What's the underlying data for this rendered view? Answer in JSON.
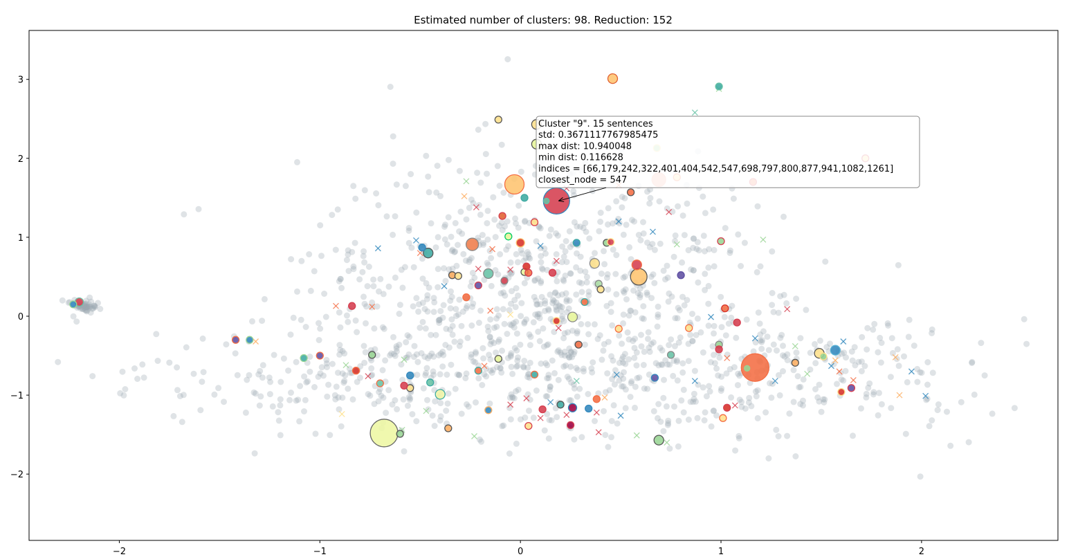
{
  "chart_data": {
    "type": "scatter",
    "title": "Estimated number of clusters: 98. Reduction: 152",
    "xlabel": "",
    "ylabel": "",
    "xlim": [
      -2.45,
      2.68
    ],
    "ylim": [
      -2.84,
      3.62
    ],
    "x_ticks": [
      -2,
      -1,
      0,
      1,
      2
    ],
    "y_ticks": [
      -2,
      -1,
      0,
      1,
      2,
      3
    ],
    "x_tick_labels": [
      "−2",
      "−1",
      "0",
      "1",
      "2"
    ],
    "y_tick_labels": [
      "−2",
      "−1",
      "0",
      "1",
      "2",
      "3"
    ],
    "grid": false,
    "legend": "none",
    "background_points": {
      "color": "#9aa7b0",
      "count": 1400,
      "description_free": true
    },
    "cluster_markers": [
      {
        "x": -0.68,
        "y": -1.48,
        "size": 20,
        "color": "#eef7a3",
        "edge": "#666666"
      },
      {
        "x": 1.17,
        "y": -0.65,
        "size": 20,
        "color": "#f46d43",
        "edge": "#f46d43"
      },
      {
        "x": 0.18,
        "y": 1.46,
        "size": 19,
        "color": "#d53e4f",
        "edge": "#3288bd"
      },
      {
        "x": -0.03,
        "y": 1.67,
        "size": 14,
        "color": "#fec470",
        "edge": "#f46d43"
      },
      {
        "x": 0.59,
        "y": 0.5,
        "size": 12,
        "color": "#fec470",
        "edge": "#555555"
      },
      {
        "x": 0.69,
        "y": 1.73,
        "size": 10,
        "color": "#f7a08d",
        "edge": "#f7a08d"
      },
      {
        "x": -0.24,
        "y": 0.91,
        "size": 9,
        "color": "#ef7c4a",
        "edge": "#888888"
      },
      {
        "x": 0.46,
        "y": 3.01,
        "size": 7,
        "color": "#fec470",
        "edge": "#e06030"
      },
      {
        "x": -0.46,
        "y": 0.8,
        "size": 7,
        "color": "#3eaaa2",
        "edge": "#555555"
      },
      {
        "x": 0.69,
        "y": -1.57,
        "size": 7,
        "color": "#99d594",
        "edge": "#555555"
      },
      {
        "x": 1.49,
        "y": -0.47,
        "size": 7,
        "color": "#fee08b",
        "edge": "#555555"
      },
      {
        "x": -0.16,
        "y": 0.54,
        "size": 7,
        "color": "#66c2a5",
        "edge": "#888888"
      },
      {
        "x": 1.57,
        "y": -0.43,
        "size": 7,
        "color": "#3288bd",
        "edge": "#5ab4d6"
      },
      {
        "x": 0.37,
        "y": 0.67,
        "size": 7,
        "color": "#fee08b",
        "edge": "#888888"
      },
      {
        "x": -0.4,
        "y": -0.99,
        "size": 7,
        "color": "#f4f7a8",
        "edge": "#3eaaa2"
      },
      {
        "x": 0.26,
        "y": -0.01,
        "size": 7,
        "color": "#e6f598",
        "edge": "#888888"
      },
      {
        "x": 0.08,
        "y": 2.43,
        "size": 7,
        "color": "#fee08b",
        "edge": "#555555"
      },
      {
        "x": 0.08,
        "y": 2.18,
        "size": 7,
        "color": "#e6f598",
        "edge": "#555555"
      },
      {
        "x": 0.58,
        "y": 0.65,
        "size": 7,
        "color": "#d53e4f",
        "edge": "#f46d43"
      },
      {
        "x": 0.26,
        "y": -1.16,
        "size": 6,
        "color": "#9e0142",
        "edge": "#3288bd"
      },
      {
        "x": 0.0,
        "y": 0.93,
        "size": 6,
        "color": "#d73027",
        "edge": "#fec470"
      },
      {
        "x": 0.99,
        "y": 2.91,
        "size": 5,
        "color": "#3eaaa2",
        "edge": "#66c2a5"
      },
      {
        "x": -2.2,
        "y": 0.18,
        "size": 6,
        "color": "#d53e4f",
        "edge": "#66c2a5"
      },
      {
        "x": -2.23,
        "y": 0.15,
        "size": 5,
        "color": "#3288bd",
        "edge": "#99d594"
      },
      {
        "x": -1.42,
        "y": -0.3,
        "size": 5,
        "color": "#5e4fa2",
        "edge": "#f46d43"
      },
      {
        "x": -1.35,
        "y": -0.3,
        "size": 5,
        "color": "#3288bd",
        "edge": "#99d594"
      },
      {
        "x": -1.08,
        "y": -0.53,
        "size": 5,
        "color": "#3eaaa2",
        "edge": "#99d594"
      },
      {
        "x": -1.0,
        "y": -0.5,
        "size": 5,
        "color": "#5e4fa2",
        "edge": "#f46d43"
      },
      {
        "x": -0.84,
        "y": 0.13,
        "size": 5,
        "color": "#d53e4f",
        "edge": "#d53e4f"
      },
      {
        "x": -0.74,
        "y": -0.49,
        "size": 5,
        "color": "#99d594",
        "edge": "#555555"
      },
      {
        "x": -0.82,
        "y": -0.69,
        "size": 5,
        "color": "#d73027",
        "edge": "#f46d43"
      },
      {
        "x": -0.7,
        "y": -0.85,
        "size": 5,
        "color": "#66c2a5",
        "edge": "#f46d43"
      },
      {
        "x": -0.55,
        "y": -0.91,
        "size": 5,
        "color": "#fee08b",
        "edge": "#555555"
      },
      {
        "x": -0.58,
        "y": -0.88,
        "size": 5,
        "color": "#d53e4f",
        "edge": "#d53e4f"
      },
      {
        "x": -0.45,
        "y": -0.84,
        "size": 5,
        "color": "#66c2a5",
        "edge": "#3eaaa2"
      },
      {
        "x": -0.36,
        "y": -1.42,
        "size": 5,
        "color": "#fdae61",
        "edge": "#555555"
      },
      {
        "x": -0.55,
        "y": -0.75,
        "size": 5,
        "color": "#3288bd",
        "edge": "#3288bd"
      },
      {
        "x": -0.49,
        "y": 0.87,
        "size": 5,
        "color": "#3288bd",
        "edge": "#3288bd"
      },
      {
        "x": -0.34,
        "y": 0.52,
        "size": 5,
        "color": "#fdae61",
        "edge": "#555555"
      },
      {
        "x": -0.31,
        "y": 0.51,
        "size": 5,
        "color": "#fee08b",
        "edge": "#555555"
      },
      {
        "x": -0.21,
        "y": 0.39,
        "size": 5,
        "color": "#5e4fa2",
        "edge": "#d53e4f"
      },
      {
        "x": -0.27,
        "y": 0.24,
        "size": 5,
        "color": "#f46d43",
        "edge": "#f46d43"
      },
      {
        "x": -0.09,
        "y": 1.27,
        "size": 5,
        "color": "#e06030",
        "edge": "#d53e4f"
      },
      {
        "x": -0.08,
        "y": 0.45,
        "size": 5,
        "color": "#d53e4f",
        "edge": "#888888"
      },
      {
        "x": -0.06,
        "y": 1.01,
        "size": 5,
        "color": "#e6f598",
        "edge": "#00cc66"
      },
      {
        "x": -0.11,
        "y": 2.49,
        "size": 5,
        "color": "#fee08b",
        "edge": "#555555"
      },
      {
        "x": 0.02,
        "y": 0.56,
        "size": 5,
        "color": "#e6f598",
        "edge": "#555555"
      },
      {
        "x": 0.04,
        "y": 0.55,
        "size": 5,
        "color": "#f46d43",
        "edge": "#d53e4f"
      },
      {
        "x": 0.03,
        "y": 0.63,
        "size": 5,
        "color": "#d73027",
        "edge": "#d53e4f"
      },
      {
        "x": 0.02,
        "y": 1.5,
        "size": 5,
        "color": "#3eaaa2",
        "edge": "#3eaaa2"
      },
      {
        "x": 0.07,
        "y": 1.19,
        "size": 5,
        "color": "#fee08b",
        "edge": "#d53e4f"
      },
      {
        "x": 0.16,
        "y": 0.55,
        "size": 5,
        "color": "#d53e4f",
        "edge": "#d53e4f"
      },
      {
        "x": 0.18,
        "y": -0.06,
        "size": 5,
        "color": "#d73027",
        "edge": "#fee08b"
      },
      {
        "x": 0.28,
        "y": 0.93,
        "size": 5,
        "color": "#3288bd",
        "edge": "#3eaaa2"
      },
      {
        "x": 0.32,
        "y": 0.18,
        "size": 5,
        "color": "#f46d43",
        "edge": "#3eaaa2"
      },
      {
        "x": 0.39,
        "y": 0.41,
        "size": 5,
        "color": "#abdda4",
        "edge": "#888888"
      },
      {
        "x": 0.4,
        "y": 0.34,
        "size": 5,
        "color": "#fee08b",
        "edge": "#555555"
      },
      {
        "x": 0.43,
        "y": 0.93,
        "size": 5,
        "color": "#99d594",
        "edge": "#555555"
      },
      {
        "x": 0.45,
        "y": 0.94,
        "size": 5,
        "color": "#d53e4f",
        "edge": "#fee08b"
      },
      {
        "x": 0.55,
        "y": 1.57,
        "size": 5,
        "color": "#f46d43",
        "edge": "#555555"
      },
      {
        "x": 0.29,
        "y": -0.36,
        "size": 5,
        "color": "#f46d43",
        "edge": "#555555"
      },
      {
        "x": 0.49,
        "y": -0.16,
        "size": 5,
        "color": "#fee08b",
        "edge": "#f46d43"
      },
      {
        "x": 0.07,
        "y": -0.74,
        "size": 5,
        "color": "#3eaaa2",
        "edge": "#f46d43"
      },
      {
        "x": -0.11,
        "y": -0.54,
        "size": 5,
        "color": "#e6f598",
        "edge": "#555555"
      },
      {
        "x": -0.16,
        "y": -1.19,
        "size": 5,
        "color": "#3288bd",
        "edge": "#fdae61"
      },
      {
        "x": -0.21,
        "y": -0.69,
        "size": 5,
        "color": "#f46d43",
        "edge": "#3eaaa2"
      },
      {
        "x": 0.04,
        "y": -1.39,
        "size": 5,
        "color": "#fee08b",
        "edge": "#d53e4f"
      },
      {
        "x": 0.11,
        "y": -1.18,
        "size": 5,
        "color": "#d53e4f",
        "edge": "#d53e4f"
      },
      {
        "x": 0.2,
        "y": -1.12,
        "size": 5,
        "color": "#3eaaa2",
        "edge": "#555555"
      },
      {
        "x": 0.34,
        "y": -1.17,
        "size": 5,
        "color": "#3288bd",
        "edge": "#3288bd"
      },
      {
        "x": 0.25,
        "y": -1.38,
        "size": 5,
        "color": "#9e0142",
        "edge": "#d53e4f"
      },
      {
        "x": 0.38,
        "y": -1.05,
        "size": 5,
        "color": "#f46d43",
        "edge": "#f46d43"
      },
      {
        "x": 0.67,
        "y": -0.78,
        "size": 5,
        "color": "#5e4fa2",
        "edge": "#3288bd"
      },
      {
        "x": 0.75,
        "y": -0.49,
        "size": 5,
        "color": "#66c2a5",
        "edge": "#888888"
      },
      {
        "x": 0.84,
        "y": -0.15,
        "size": 5,
        "color": "#fee08b",
        "edge": "#f46d43"
      },
      {
        "x": 0.8,
        "y": 0.52,
        "size": 5,
        "color": "#5e4fa2",
        "edge": "#5e4fa2"
      },
      {
        "x": 0.68,
        "y": 2.13,
        "size": 5,
        "color": "#99d594",
        "edge": "#fee08b"
      },
      {
        "x": 0.78,
        "y": 1.76,
        "size": 5,
        "color": "#fee08b",
        "edge": "#f46d43"
      },
      {
        "x": 1.0,
        "y": 0.95,
        "size": 5,
        "color": "#99d594",
        "edge": "#d53e4f"
      },
      {
        "x": 1.02,
        "y": 0.1,
        "size": 5,
        "color": "#f46d43",
        "edge": "#d73027"
      },
      {
        "x": 1.08,
        "y": -0.08,
        "size": 5,
        "color": "#d53e4f",
        "edge": "#d53e4f"
      },
      {
        "x": 0.99,
        "y": -0.36,
        "size": 5,
        "color": "#99d594",
        "edge": "#888888"
      },
      {
        "x": 0.99,
        "y": -0.42,
        "size": 5,
        "color": "#d53e4f",
        "edge": "#d53e4f"
      },
      {
        "x": 1.01,
        "y": -1.29,
        "size": 5,
        "color": "#fee08b",
        "edge": "#f46d43"
      },
      {
        "x": 1.03,
        "y": -1.16,
        "size": 5,
        "color": "#d73027",
        "edge": "#d53e4f"
      },
      {
        "x": 1.13,
        "y": -0.66,
        "size": 4,
        "color": "#99d594",
        "edge": "#99d594"
      },
      {
        "x": 1.16,
        "y": 1.7,
        "size": 5,
        "color": "#f46d43",
        "edge": "#d53e4f"
      },
      {
        "x": 1.37,
        "y": -0.59,
        "size": 5,
        "color": "#fdae61",
        "edge": "#555555"
      },
      {
        "x": 1.51,
        "y": -0.51,
        "size": 5,
        "color": "#99d594",
        "edge": "#fee08b"
      },
      {
        "x": 1.6,
        "y": -0.96,
        "size": 5,
        "color": "#d73027",
        "edge": "#fee08b"
      },
      {
        "x": 1.65,
        "y": -0.91,
        "size": 5,
        "color": "#5e4fa2",
        "edge": "#d53e4f"
      },
      {
        "x": 1.72,
        "y": 2.0,
        "size": 5,
        "color": "#fee08b",
        "edge": "#d53e4f"
      },
      {
        "x": 0.13,
        "y": 1.46,
        "size": 4,
        "color": "#66c2a5",
        "edge": "#66c2a5"
      },
      {
        "x": -0.6,
        "y": -1.49,
        "size": 5,
        "color": "#99d594",
        "edge": "#555555"
      }
    ],
    "x_markers": [
      {
        "x": -0.92,
        "y": 0.13,
        "color": "#f46d43"
      },
      {
        "x": -0.74,
        "y": 0.12,
        "color": "#f46d43"
      },
      {
        "x": -1.32,
        "y": -0.32,
        "color": "#fdae61"
      },
      {
        "x": -0.71,
        "y": 0.86,
        "color": "#3288bd"
      },
      {
        "x": -0.52,
        "y": 0.96,
        "color": "#3288bd"
      },
      {
        "x": -0.5,
        "y": 0.8,
        "color": "#f46d43"
      },
      {
        "x": -0.38,
        "y": 0.38,
        "color": "#3288bd"
      },
      {
        "x": -0.28,
        "y": 1.52,
        "color": "#fdae61"
      },
      {
        "x": -0.27,
        "y": 1.71,
        "color": "#99d594"
      },
      {
        "x": -0.22,
        "y": 1.38,
        "color": "#d53e4f"
      },
      {
        "x": -0.14,
        "y": 0.85,
        "color": "#f46d43"
      },
      {
        "x": -0.05,
        "y": 0.59,
        "color": "#d53e4f"
      },
      {
        "x": 0.1,
        "y": 0.89,
        "color": "#3288bd"
      },
      {
        "x": 0.18,
        "y": 0.7,
        "color": "#d53e4f"
      },
      {
        "x": 0.23,
        "y": 1.62,
        "color": "#d53e4f"
      },
      {
        "x": 0.49,
        "y": 1.2,
        "color": "#3288bd"
      },
      {
        "x": 0.49,
        "y": 1.66,
        "color": "#f46d43"
      },
      {
        "x": 0.74,
        "y": 1.32,
        "color": "#d53e4f"
      },
      {
        "x": 0.66,
        "y": 1.07,
        "color": "#3288bd"
      },
      {
        "x": 0.78,
        "y": 0.91,
        "color": "#99d594"
      },
      {
        "x": 0.87,
        "y": 2.58,
        "color": "#66c2a5"
      },
      {
        "x": 0.99,
        "y": 2.88,
        "color": "#99d594"
      },
      {
        "x": 1.21,
        "y": 0.97,
        "color": "#99d594"
      },
      {
        "x": 0.95,
        "y": -0.01,
        "color": "#3288bd"
      },
      {
        "x": 0.87,
        "y": -0.82,
        "color": "#3288bd"
      },
      {
        "x": 1.03,
        "y": -0.53,
        "color": "#f46d43"
      },
      {
        "x": 1.07,
        "y": -1.13,
        "color": "#d53e4f"
      },
      {
        "x": 1.17,
        "y": -0.28,
        "color": "#3288bd"
      },
      {
        "x": 1.27,
        "y": -0.82,
        "color": "#3288bd"
      },
      {
        "x": 1.33,
        "y": 0.09,
        "color": "#d53e4f"
      },
      {
        "x": 1.37,
        "y": -0.38,
        "color": "#99d594"
      },
      {
        "x": 1.43,
        "y": -0.73,
        "color": "#99d594"
      },
      {
        "x": 1.55,
        "y": -0.63,
        "color": "#3288bd"
      },
      {
        "x": 1.57,
        "y": -0.56,
        "color": "#fdae61"
      },
      {
        "x": 1.59,
        "y": -0.7,
        "color": "#f46d43"
      },
      {
        "x": 1.61,
        "y": -0.32,
        "color": "#3288bd"
      },
      {
        "x": 1.66,
        "y": -0.81,
        "color": "#f46d43"
      },
      {
        "x": 1.87,
        "y": -0.52,
        "color": "#fdae61"
      },
      {
        "x": 1.89,
        "y": -1.0,
        "color": "#fdae61"
      },
      {
        "x": 1.95,
        "y": -0.7,
        "color": "#3288bd"
      },
      {
        "x": 2.02,
        "y": -1.01,
        "color": "#3288bd"
      },
      {
        "x": -0.89,
        "y": -1.24,
        "color": "#fee08b"
      },
      {
        "x": -0.87,
        "y": -0.62,
        "color": "#99d594"
      },
      {
        "x": -0.58,
        "y": -0.55,
        "color": "#99d594"
      },
      {
        "x": -0.59,
        "y": -1.44,
        "color": "#99d594"
      },
      {
        "x": -0.47,
        "y": -1.2,
        "color": "#99d594"
      },
      {
        "x": -0.23,
        "y": -1.52,
        "color": "#99d594"
      },
      {
        "x": -0.18,
        "y": -0.63,
        "color": "#f46d43"
      },
      {
        "x": -0.05,
        "y": -1.12,
        "color": "#d53e4f"
      },
      {
        "x": 0.03,
        "y": -1.04,
        "color": "#d53e4f"
      },
      {
        "x": 0.1,
        "y": -1.29,
        "color": "#d53e4f"
      },
      {
        "x": 0.15,
        "y": -1.09,
        "color": "#3288bd"
      },
      {
        "x": 0.23,
        "y": -1.25,
        "color": "#d53e4f"
      },
      {
        "x": 0.38,
        "y": -1.22,
        "color": "#d53e4f"
      },
      {
        "x": 0.39,
        "y": -1.47,
        "color": "#d53e4f"
      },
      {
        "x": 0.42,
        "y": -1.03,
        "color": "#fdae61"
      },
      {
        "x": 0.5,
        "y": -1.26,
        "color": "#3288bd"
      },
      {
        "x": 0.48,
        "y": -0.74,
        "color": "#3288bd"
      },
      {
        "x": 0.58,
        "y": -1.51,
        "color": "#99d594"
      },
      {
        "x": 0.73,
        "y": -1.6,
        "color": "#99d594"
      },
      {
        "x": 0.19,
        "y": -0.15,
        "color": "#d53e4f"
      },
      {
        "x": 0.28,
        "y": -0.82,
        "color": "#66c2a5"
      },
      {
        "x": -0.05,
        "y": 0.02,
        "color": "#fee08b"
      },
      {
        "x": -0.21,
        "y": 0.6,
        "color": "#d53e4f"
      },
      {
        "x": -0.15,
        "y": 0.07,
        "color": "#f46d43"
      },
      {
        "x": -0.76,
        "y": -0.76,
        "color": "#d53e4f"
      }
    ],
    "annotation": {
      "lines": [
        "Cluster \"9\". 15 sentences",
        "std: 0.3671117767985475",
        "max dist:  10.940048",
        "min dist:  0.116628",
        "indices = [66,179,242,322,401,404,542,547,698,797,800,877,941,1082,1261]",
        "closest_node = 547"
      ],
      "points_to": {
        "x": 0.19,
        "y": 1.46
      }
    }
  }
}
